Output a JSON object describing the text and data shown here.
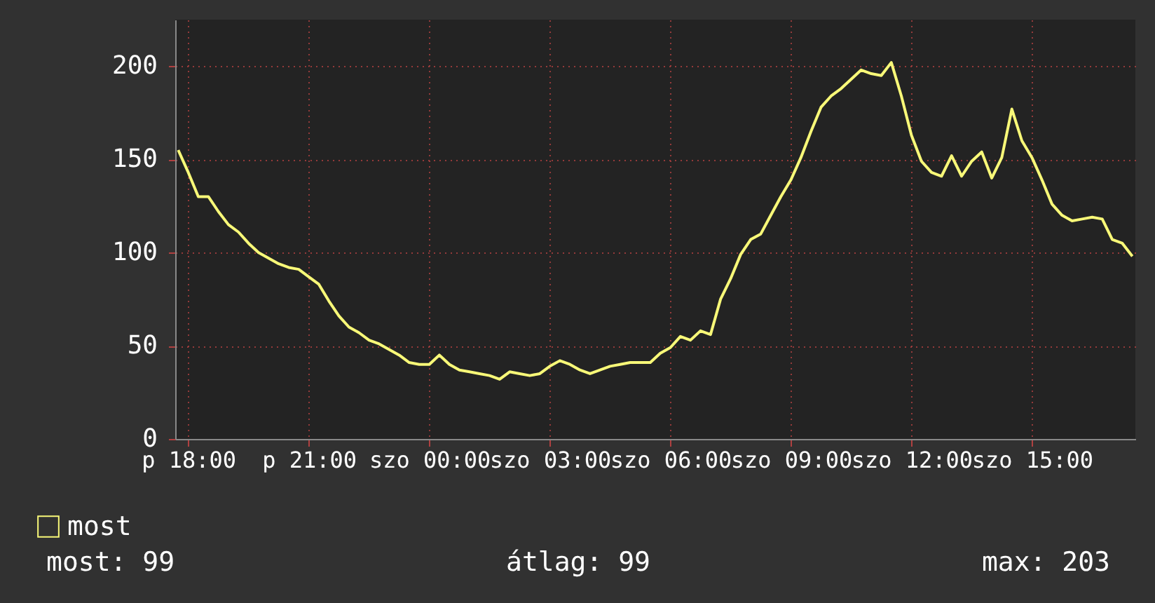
{
  "chart_data": {
    "type": "line",
    "categories": [
      null,
      "p 18:00",
      null,
      null,
      null,
      null,
      null,
      null,
      null,
      null,
      null,
      null,
      null,
      "p 21:00",
      null,
      null,
      null,
      null,
      null,
      null,
      null,
      null,
      null,
      null,
      null,
      "szo 00:00",
      null,
      null,
      null,
      null,
      null,
      null,
      null,
      null,
      null,
      null,
      null,
      "szo 03:00",
      null,
      null,
      null,
      null,
      null,
      null,
      null,
      null,
      null,
      null,
      null,
      "szo 06:00",
      null,
      null,
      null,
      null,
      null,
      null,
      null,
      null,
      null,
      null,
      null,
      "szo 09:00",
      null,
      null,
      null,
      null,
      null,
      null,
      null,
      null,
      null,
      null,
      null,
      "szo 12:00",
      null,
      null,
      null,
      null,
      null,
      null,
      null,
      null,
      null,
      null,
      null,
      "szo 15:00",
      null,
      null,
      null,
      null,
      null,
      null,
      null,
      null,
      null,
      null
    ],
    "series": [
      {
        "name": "most",
        "color": "#f8f878",
        "values": [
          155,
          143,
          130,
          130,
          122,
          115,
          111,
          105,
          100,
          97,
          94,
          92,
          91,
          87,
          83,
          74,
          66,
          60,
          57,
          53,
          51,
          48,
          45,
          41,
          40,
          40,
          45,
          40,
          37,
          36,
          35,
          34,
          32,
          36,
          35,
          34,
          35,
          39,
          42,
          40,
          37,
          35,
          37,
          39,
          40,
          41,
          41,
          41,
          46,
          49,
          55,
          53,
          58,
          56,
          75,
          86,
          99,
          107,
          110,
          120,
          130,
          139,
          151,
          165,
          178,
          184,
          188,
          193,
          198,
          196,
          195,
          202,
          184,
          163,
          149,
          143,
          141,
          152,
          141,
          149,
          154,
          140,
          151,
          177,
          160,
          151,
          139,
          126,
          120,
          117,
          118,
          119,
          118,
          107,
          105,
          98
        ]
      }
    ],
    "ylim": [
      0,
      225
    ],
    "yticks": [
      0,
      50,
      100,
      150,
      200
    ],
    "grid": true,
    "legend": "bottom",
    "annotations": [
      "most: 99",
      "átlag: 99",
      "max: 203"
    ]
  }
}
